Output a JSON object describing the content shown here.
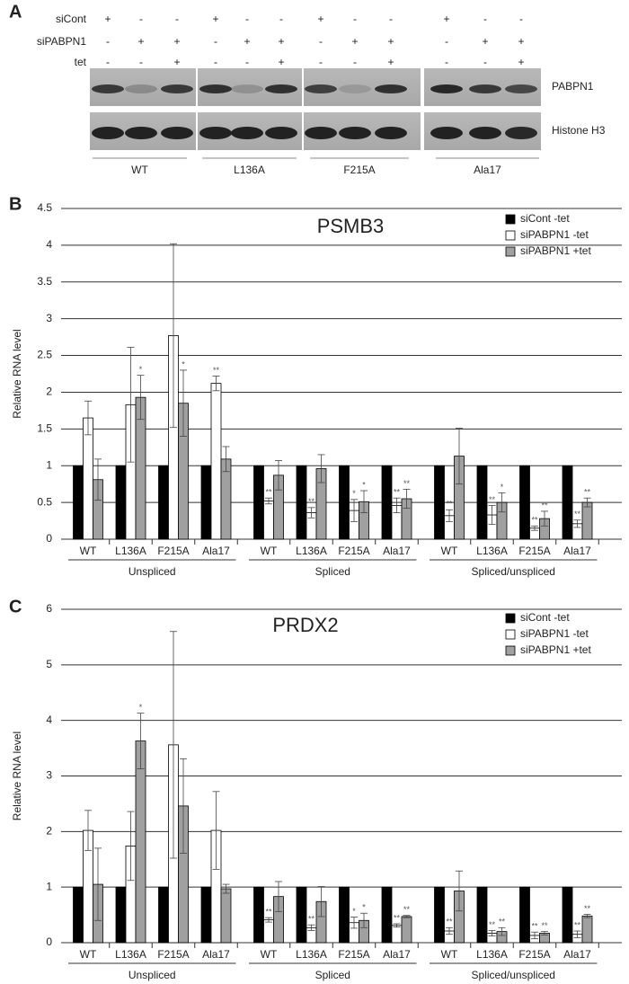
{
  "blot": {
    "panel": "A",
    "rows": [
      {
        "label": "siCont",
        "signs": [
          "+",
          "-",
          "-",
          "+",
          "-",
          "-",
          "+",
          "-",
          "-",
          "+",
          "-",
          "-"
        ]
      },
      {
        "label": "siPABPN1",
        "signs": [
          "-",
          "+",
          "+",
          "-",
          "+",
          "+",
          "-",
          "+",
          "+",
          "-",
          "+",
          "+"
        ]
      },
      {
        "label": "tet",
        "signs": [
          "-",
          "-",
          "+",
          "-",
          "-",
          "+",
          "-",
          "-",
          "+",
          "-",
          "-",
          "+"
        ]
      }
    ],
    "bands": [
      "PABPN1",
      "Histone H3"
    ],
    "groups": [
      "WT",
      "L136A",
      "F215A",
      "Ala17"
    ]
  },
  "chart_data": [
    {
      "type": "bar",
      "panel": "B",
      "title": "PSMB3",
      "ylabel": "Relative RNA level",
      "categories": [
        "WT",
        "L136A",
        "F215A",
        "Ala17",
        "WT",
        "L136A",
        "F215A",
        "Ala17",
        "WT",
        "L136A",
        "F215A",
        "Ala17"
      ],
      "groups": [
        "Unspliced",
        "Spliced",
        "Spliced/unspliced"
      ],
      "series": [
        {
          "name": "siCont -tet",
          "color": "#000000",
          "values": [
            1,
            1,
            1,
            1,
            1,
            1,
            1,
            1,
            1,
            1,
            1,
            1
          ]
        },
        {
          "name": "siPABPN1 -tet",
          "color": "#ffffff",
          "values": [
            1.65,
            1.83,
            2.77,
            2.12,
            0.52,
            0.36,
            0.39,
            0.46,
            0.32,
            0.33,
            0.15,
            0.21
          ],
          "errors": [
            0.23,
            0.78,
            1.25,
            0.1,
            0.04,
            0.07,
            0.15,
            0.1,
            0.08,
            0.13,
            0.03,
            0.05
          ],
          "stars": [
            null,
            null,
            null,
            "**",
            "**",
            "**",
            "*",
            "**",
            "**",
            "**",
            "**",
            "**"
          ]
        },
        {
          "name": "siPABPN1 +tet",
          "color": "#a0a0a0",
          "values": [
            0.81,
            1.93,
            1.85,
            1.09,
            0.87,
            0.96,
            0.51,
            0.55,
            1.13,
            0.5,
            0.28,
            0.5
          ],
          "errors": [
            0.28,
            0.3,
            0.45,
            0.17,
            0.2,
            0.19,
            0.15,
            0.13,
            0.38,
            0.13,
            0.1,
            0.06
          ],
          "stars": [
            null,
            "*",
            "*",
            null,
            null,
            null,
            "*",
            "**",
            null,
            "*",
            "**",
            "**"
          ]
        }
      ],
      "ylim": [
        0,
        4.5
      ],
      "yticks": [
        0,
        0.5,
        1,
        1.5,
        2,
        2.5,
        3,
        3.5,
        4,
        4.5
      ],
      "grid": true,
      "legend": "top-right"
    },
    {
      "type": "bar",
      "panel": "C",
      "title": "PRDX2",
      "ylabel": "Relative RNA level",
      "categories": [
        "WT",
        "L136A",
        "F215A",
        "Ala17",
        "WT",
        "L136A",
        "F215A",
        "Ala17",
        "WT",
        "L136A",
        "F215A",
        "Ala17"
      ],
      "groups": [
        "Unspliced",
        "Spliced",
        "Spliced/unspliced"
      ],
      "series": [
        {
          "name": "siCont -tet",
          "color": "#000000",
          "values": [
            1,
            1,
            1,
            1,
            1,
            1,
            1,
            1,
            1,
            1,
            1,
            1
          ]
        },
        {
          "name": "siPABPN1 -tet",
          "color": "#ffffff",
          "values": [
            2.02,
            1.74,
            3.56,
            2.02,
            0.41,
            0.27,
            0.36,
            0.31,
            0.21,
            0.17,
            0.13,
            0.15
          ],
          "errors": [
            0.36,
            0.62,
            2.04,
            0.7,
            0.04,
            0.05,
            0.1,
            0.03,
            0.06,
            0.05,
            0.06,
            0.06
          ],
          "stars": [
            null,
            null,
            null,
            null,
            "**",
            "**",
            "*",
            "**",
            "**",
            "**",
            "**",
            "**"
          ]
        },
        {
          "name": "siPABPN1 +tet",
          "color": "#a0a0a0",
          "values": [
            1.05,
            3.63,
            2.46,
            0.97,
            0.83,
            0.74,
            0.4,
            0.47,
            0.93,
            0.2,
            0.17,
            0.48
          ],
          "errors": [
            0.65,
            0.5,
            0.85,
            0.08,
            0.27,
            0.27,
            0.13,
            0.02,
            0.36,
            0.07,
            0.03,
            0.03
          ],
          "stars": [
            null,
            "*",
            null,
            null,
            null,
            null,
            "*",
            "**",
            null,
            "**",
            "**",
            "**"
          ]
        }
      ],
      "ylim": [
        0,
        6
      ],
      "yticks": [
        0,
        1,
        2,
        3,
        4,
        5,
        6
      ],
      "grid": true,
      "legend": "top-right"
    }
  ]
}
